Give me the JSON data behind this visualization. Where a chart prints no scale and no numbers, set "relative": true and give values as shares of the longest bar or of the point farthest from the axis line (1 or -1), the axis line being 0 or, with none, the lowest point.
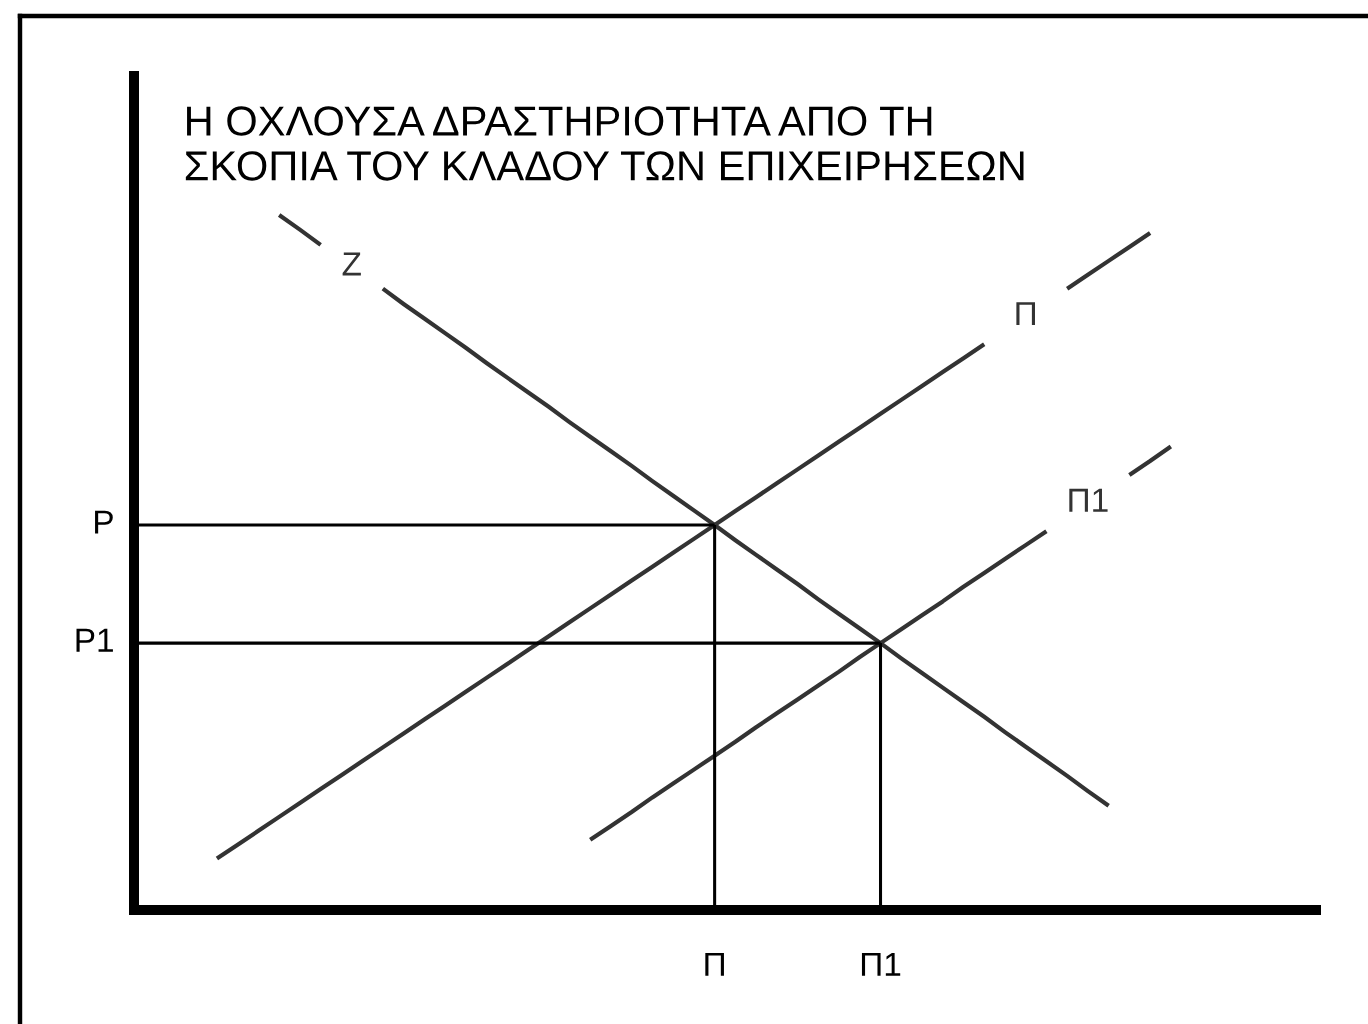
{
  "chart_data": {
    "type": "line",
    "title": "Η ΟΧΛΟΥΣΑ ΔΡΑΣΤΗΡΙΟΤΗΤΑ ΑΠΟ ΤΗ\nΣΚΟΠΙΑ ΤΟΥ ΚΛΑΔΟΥ ΤΩΝ ΕΠΙΧΕΙΡΗΣΕΩΝ",
    "relative": true,
    "line_style": "solid",
    "categories": [
      null,
      null,
      null,
      null,
      null,
      null,
      null,
      null,
      null,
      null,
      null,
      null,
      null,
      null,
      null,
      null,
      null,
      null,
      null,
      null,
      null,
      null,
      null,
      null,
      null,
      null,
      null,
      null,
      "Π",
      null,
      null,
      null,
      null,
      null,
      null,
      null,
      "Π1",
      null,
      null,
      null,
      null,
      null,
      null,
      null,
      null,
      null,
      null,
      null,
      null,
      null,
      null,
      null,
      null,
      null,
      null,
      null,
      null
    ],
    "series": [
      {
        "name": "Z",
        "color": "#333333",
        "values": [
          null,
          null,
          null,
          null,
          null,
          null,
          null,
          1.0,
          0.979,
          0.957,
          null,
          null,
          0.894,
          0.872,
          0.851,
          0.83,
          0.809,
          0.787,
          0.766,
          0.745,
          0.724,
          0.702,
          0.681,
          0.66,
          0.639,
          0.617,
          0.596,
          0.575,
          0.554,
          0.532,
          0.511,
          0.49,
          0.469,
          0.447,
          0.426,
          0.405,
          0.384,
          0.362,
          0.341,
          0.32,
          0.299,
          0.278,
          0.256,
          0.235,
          0.214,
          0.193,
          0.171,
          0.15,
          null,
          null,
          null,
          null,
          null,
          null,
          null,
          null,
          null
        ]
      },
      {
        "name": "Π",
        "color": "#333333",
        "values": [
          null,
          null,
          null,
          null,
          0.074,
          0.094,
          0.114,
          0.134,
          0.154,
          0.174,
          0.194,
          0.214,
          0.234,
          0.254,
          0.274,
          0.294,
          0.314,
          0.334,
          0.354,
          0.374,
          0.394,
          0.414,
          0.434,
          0.454,
          0.474,
          0.494,
          0.514,
          0.534,
          0.554,
          0.574,
          0.594,
          0.614,
          0.634,
          0.654,
          0.674,
          0.694,
          0.714,
          0.734,
          0.754,
          0.774,
          0.794,
          0.814,
          null,
          null,
          null,
          0.894,
          0.914,
          0.934,
          0.954,
          0.974,
          null,
          null,
          null,
          null,
          null,
          null,
          null
        ]
      },
      {
        "name": "Π1",
        "color": "#333333",
        "values": [
          null,
          null,
          null,
          null,
          null,
          null,
          null,
          null,
          null,
          null,
          null,
          null,
          null,
          null,
          null,
          null,
          null,
          null,
          null,
          null,
          null,
          null,
          0.101,
          0.121,
          0.141,
          0.162,
          0.182,
          0.202,
          0.222,
          0.242,
          0.263,
          0.283,
          0.303,
          0.323,
          0.343,
          0.364,
          0.384,
          0.404,
          0.424,
          0.444,
          0.465,
          0.485,
          0.505,
          0.525,
          0.545,
          null,
          null,
          null,
          0.626,
          0.646,
          0.667,
          null,
          null,
          null,
          null,
          null,
          null
        ]
      },
      {
        "name": "P",
        "color": "#000000",
        "values": [
          0.554,
          0.554,
          0.554,
          0.554,
          0.554,
          0.554,
          0.554,
          0.554,
          0.554,
          0.554,
          0.554,
          0.554,
          0.554,
          0.554,
          0.554,
          0.554,
          0.554,
          0.554,
          0.554,
          0.554,
          0.554,
          0.554,
          0.554,
          0.554,
          0.554,
          0.554,
          0.554,
          0.554,
          0.554,
          null,
          null,
          null,
          null,
          null,
          null,
          null,
          null,
          null,
          null,
          null,
          null,
          null,
          null,
          null,
          null,
          null,
          null,
          null,
          null,
          null,
          null,
          null,
          null,
          null,
          null,
          null,
          null
        ]
      },
      {
        "name": "P1",
        "color": "#000000",
        "values": [
          0.384,
          0.384,
          0.384,
          0.384,
          0.384,
          0.384,
          0.384,
          0.384,
          0.384,
          0.384,
          0.384,
          0.384,
          0.384,
          0.384,
          0.384,
          0.384,
          0.384,
          0.384,
          0.384,
          0.384,
          0.384,
          0.384,
          0.384,
          0.384,
          0.384,
          0.384,
          0.384,
          0.384,
          0.384,
          0.384,
          0.384,
          0.384,
          0.384,
          0.384,
          0.384,
          0.384,
          0.384,
          null,
          null,
          null,
          null,
          null,
          null,
          null,
          null,
          null,
          null,
          null,
          null,
          null,
          null,
          null,
          null,
          null,
          null,
          null,
          null
        ]
      },
      {
        "color": "#000000",
        "x": [
          "Π",
          "Π"
        ],
        "values": [
          0,
          0.554
        ]
      },
      {
        "color": "#000000",
        "x": [
          "Π1",
          "Π1"
        ],
        "values": [
          0,
          0.384
        ]
      }
    ]
  }
}
